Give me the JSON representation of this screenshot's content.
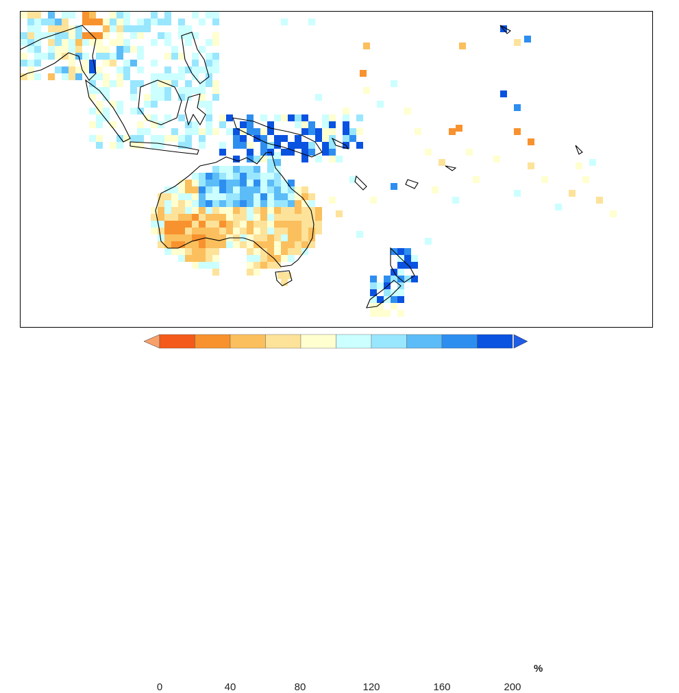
{
  "legend": {
    "unit": "%",
    "ticks": [
      "0",
      "40",
      "80",
      "120",
      "160",
      "200"
    ],
    "colors": [
      "#f45a1b",
      "#f7922f",
      "#fbbf5d",
      "#fde29a",
      "#ffffd0",
      "#ccffff",
      "#99e6ff",
      "#5cbcf7",
      "#2e8ef0",
      "#0a52e0"
    ],
    "arrow_low_color": "#f7a06a",
    "arrow_high_color": "#1f5de6"
  },
  "map": {
    "coastline_color": "#000000",
    "frame_color": "#000000"
  }
}
